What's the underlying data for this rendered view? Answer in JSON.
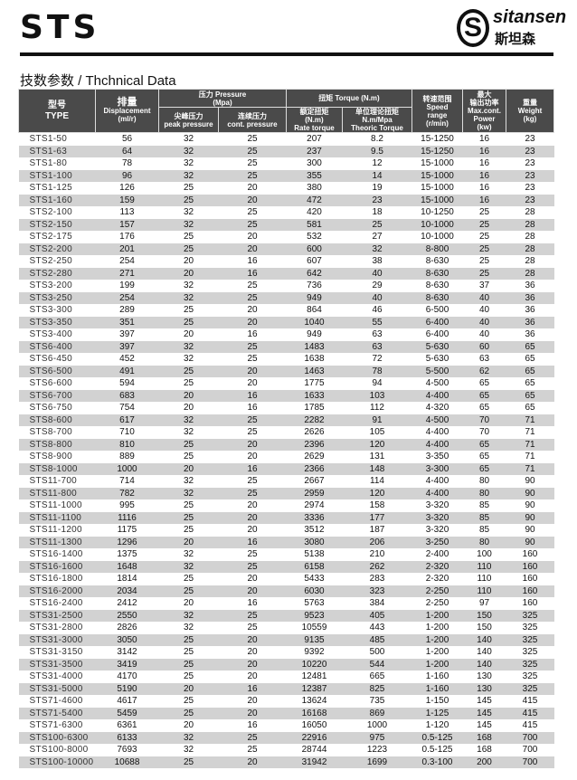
{
  "header": {
    "brand": "STS",
    "logo": {
      "mark": "S",
      "name": "sitansen",
      "name_cn": "斯坦森"
    }
  },
  "subtitle": "技数参数 / Thchnical Data",
  "columns": {
    "type": {
      "cn": "型号",
      "en": "TYPE"
    },
    "displacement": {
      "cn": "排量",
      "en": "Displacement",
      "unit": "(ml/r)"
    },
    "pressure": {
      "group": "压力 Pressure",
      "unit": "(Mpa)",
      "peak_cn": "尖峰压力",
      "peak_en": "peak pressure",
      "cont_cn": "连续压力",
      "cont_en": "cont. pressure"
    },
    "torque": {
      "group": "扭矩 Torque (N.m)",
      "rate_cn": "额定扭矩",
      "rate_unit": "(N.m)",
      "rate_en": "Rate torque",
      "theo_cn": "单位理论扭矩",
      "theo_unit": "N.m/Mpa",
      "theo_en": "Theoric Torque"
    },
    "speed": {
      "cn": "转速范围",
      "en1": "Speed",
      "en2": "range",
      "unit": "(r/min)"
    },
    "power": {
      "cn1": "最大",
      "cn2": "输出功率",
      "en1": "Max.cont.",
      "en2": "Power",
      "unit": "(kw)"
    },
    "weight": {
      "cn": "重量",
      "en": "Weight",
      "unit": "(kg)"
    }
  },
  "rows": [
    [
      "STS1-50",
      "56",
      "32",
      "25",
      "207",
      "8.2",
      "15-1250",
      "16",
      "23"
    ],
    [
      "STS1-63",
      "64",
      "32",
      "25",
      "237",
      "9.5",
      "15-1250",
      "16",
      "23"
    ],
    [
      "STS1-80",
      "78",
      "32",
      "25",
      "300",
      "12",
      "15-1000",
      "16",
      "23"
    ],
    [
      "STS1-100",
      "96",
      "32",
      "25",
      "355",
      "14",
      "15-1000",
      "16",
      "23"
    ],
    [
      "STS1-125",
      "126",
      "25",
      "20",
      "380",
      "19",
      "15-1000",
      "16",
      "23"
    ],
    [
      "STS1-160",
      "159",
      "25",
      "20",
      "472",
      "23",
      "15-1000",
      "16",
      "23"
    ],
    [
      "STS2-100",
      "113",
      "32",
      "25",
      "420",
      "18",
      "10-1250",
      "25",
      "28"
    ],
    [
      "STS2-150",
      "157",
      "32",
      "25",
      "581",
      "25",
      "10-1000",
      "25",
      "28"
    ],
    [
      "STS2-175",
      "176",
      "25",
      "20",
      "532",
      "27",
      "10-1000",
      "25",
      "28"
    ],
    [
      "STS2-200",
      "201",
      "25",
      "20",
      "600",
      "32",
      "8-800",
      "25",
      "28"
    ],
    [
      "STS2-250",
      "254",
      "20",
      "16",
      "607",
      "38",
      "8-630",
      "25",
      "28"
    ],
    [
      "STS2-280",
      "271",
      "20",
      "16",
      "642",
      "40",
      "8-630",
      "25",
      "28"
    ],
    [
      "STS3-200",
      "199",
      "32",
      "25",
      "736",
      "29",
      "8-630",
      "37",
      "36"
    ],
    [
      "STS3-250",
      "254",
      "32",
      "25",
      "949",
      "40",
      "8-630",
      "40",
      "36"
    ],
    [
      "STS3-300",
      "289",
      "25",
      "20",
      "864",
      "46",
      "6-500",
      "40",
      "36"
    ],
    [
      "STS3-350",
      "351",
      "25",
      "20",
      "1040",
      "55",
      "6-400",
      "40",
      "36"
    ],
    [
      "STS3-400",
      "397",
      "20",
      "16",
      "949",
      "63",
      "6-400",
      "40",
      "36"
    ],
    [
      "STS6-400",
      "397",
      "32",
      "25",
      "1483",
      "63",
      "5-630",
      "60",
      "65"
    ],
    [
      "STS6-450",
      "452",
      "32",
      "25",
      "1638",
      "72",
      "5-630",
      "63",
      "65"
    ],
    [
      "STS6-500",
      "491",
      "25",
      "20",
      "1463",
      "78",
      "5-500",
      "62",
      "65"
    ],
    [
      "STS6-600",
      "594",
      "25",
      "20",
      "1775",
      "94",
      "4-500",
      "65",
      "65"
    ],
    [
      "STS6-700",
      "683",
      "20",
      "16",
      "1633",
      "103",
      "4-400",
      "65",
      "65"
    ],
    [
      "STS6-750",
      "754",
      "20",
      "16",
      "1785",
      "112",
      "4-320",
      "65",
      "65"
    ],
    [
      "STS8-600",
      "617",
      "32",
      "25",
      "2282",
      "91",
      "4-500",
      "70",
      "71"
    ],
    [
      "STS8-700",
      "710",
      "32",
      "25",
      "2626",
      "105",
      "4-400",
      "70",
      "71"
    ],
    [
      "STS8-800",
      "810",
      "25",
      "20",
      "2396",
      "120",
      "4-400",
      "65",
      "71"
    ],
    [
      "STS8-900",
      "889",
      "25",
      "20",
      "2629",
      "131",
      "3-350",
      "65",
      "71"
    ],
    [
      "STS8-1000",
      "1000",
      "20",
      "16",
      "2366",
      "148",
      "3-300",
      "65",
      "71"
    ],
    [
      "STS11-700",
      "714",
      "32",
      "25",
      "2667",
      "114",
      "4-400",
      "80",
      "90"
    ],
    [
      "STS11-800",
      "782",
      "32",
      "25",
      "2959",
      "120",
      "4-400",
      "80",
      "90"
    ],
    [
      "STS11-1000",
      "995",
      "25",
      "20",
      "2974",
      "158",
      "3-320",
      "85",
      "90"
    ],
    [
      "STS11-1100",
      "1116",
      "25",
      "20",
      "3336",
      "177",
      "3-320",
      "85",
      "90"
    ],
    [
      "STS11-1200",
      "1175",
      "25",
      "20",
      "3512",
      "187",
      "3-320",
      "85",
      "90"
    ],
    [
      "STS11-1300",
      "1296",
      "20",
      "16",
      "3080",
      "206",
      "3-250",
      "80",
      "90"
    ],
    [
      "STS16-1400",
      "1375",
      "32",
      "25",
      "5138",
      "210",
      "2-400",
      "100",
      "160"
    ],
    [
      "STS16-1600",
      "1648",
      "32",
      "25",
      "6158",
      "262",
      "2-320",
      "110",
      "160"
    ],
    [
      "STS16-1800",
      "1814",
      "25",
      "20",
      "5433",
      "283",
      "2-320",
      "110",
      "160"
    ],
    [
      "STS16-2000",
      "2034",
      "25",
      "20",
      "6030",
      "323",
      "2-250",
      "110",
      "160"
    ],
    [
      "STS16-2400",
      "2412",
      "20",
      "16",
      "5763",
      "384",
      "2-250",
      "97",
      "160"
    ],
    [
      "STS31-2500",
      "2550",
      "32",
      "25",
      "9523",
      "405",
      "1-200",
      "150",
      "325"
    ],
    [
      "STS31-2800",
      "2826",
      "32",
      "25",
      "10559",
      "443",
      "1-200",
      "150",
      "325"
    ],
    [
      "STS31-3000",
      "3050",
      "25",
      "20",
      "9135",
      "485",
      "1-200",
      "140",
      "325"
    ],
    [
      "STS31-3150",
      "3142",
      "25",
      "20",
      "9392",
      "500",
      "1-200",
      "140",
      "325"
    ],
    [
      "STS31-3500",
      "3419",
      "25",
      "20",
      "10220",
      "544",
      "1-200",
      "140",
      "325"
    ],
    [
      "STS31-4000",
      "4170",
      "25",
      "20",
      "12481",
      "665",
      "1-160",
      "130",
      "325"
    ],
    [
      "STS31-5000",
      "5190",
      "20",
      "16",
      "12387",
      "825",
      "1-160",
      "130",
      "325"
    ],
    [
      "STS71-4600",
      "4617",
      "25",
      "20",
      "13624",
      "735",
      "1-150",
      "145",
      "415"
    ],
    [
      "STS71-5400",
      "5459",
      "25",
      "20",
      "16168",
      "869",
      "1-125",
      "145",
      "415"
    ],
    [
      "STS71-6300",
      "6361",
      "20",
      "16",
      "16050",
      "1000",
      "1-120",
      "145",
      "415"
    ],
    [
      "STS100-6300",
      "6133",
      "32",
      "25",
      "22916",
      "975",
      "0.5-125",
      "168",
      "700"
    ],
    [
      "STS100-8000",
      "7693",
      "32",
      "25",
      "28744",
      "1223",
      "0.5-125",
      "168",
      "700"
    ],
    [
      "STS100-10000",
      "10688",
      "25",
      "20",
      "31942",
      "1699",
      "0.3-100",
      "200",
      "700"
    ]
  ]
}
